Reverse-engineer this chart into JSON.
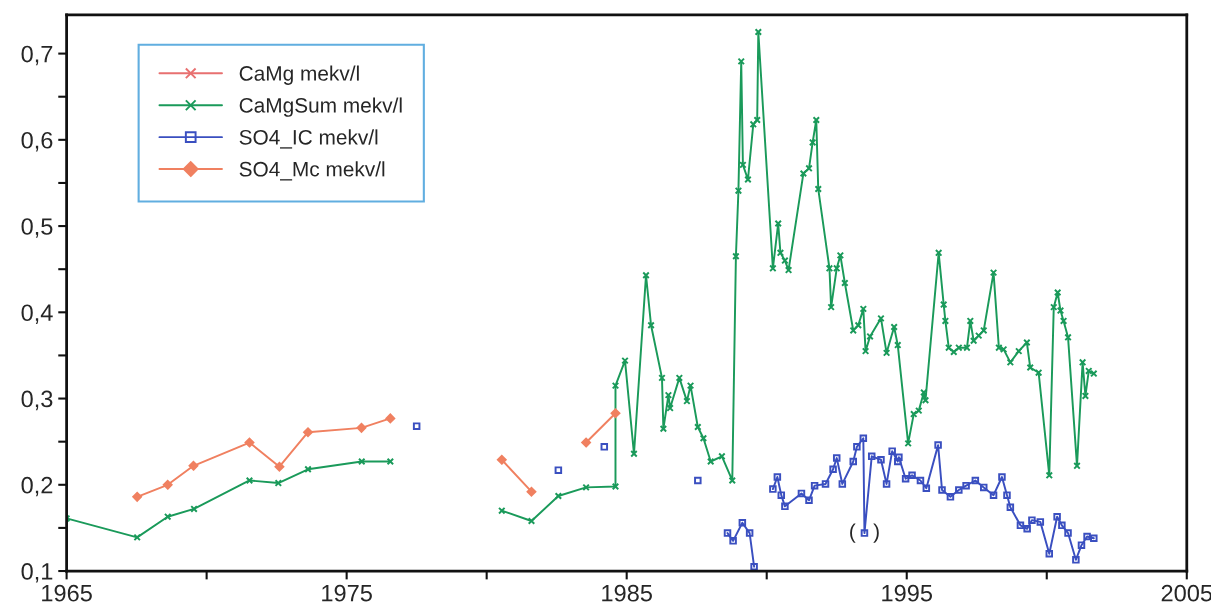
{
  "chart_data": {
    "type": "line",
    "xlim": [
      1965,
      2005
    ],
    "ylim": [
      0.1,
      0.745
    ],
    "xticks": [
      1965,
      {
        "value": 1970,
        "label": null
      },
      1975,
      {
        "value": 1980,
        "label": null
      },
      1985,
      {
        "value": 1990,
        "label": null
      },
      1995,
      {
        "value": 2000,
        "label": null
      },
      2005
    ],
    "yticks": [
      {
        "value": 0.1,
        "label": "0,1"
      },
      {
        "value": 0.15,
        "label": null
      },
      {
        "value": 0.2,
        "label": "0,2"
      },
      {
        "value": 0.25,
        "label": null
      },
      {
        "value": 0.3,
        "label": "0,3"
      },
      {
        "value": 0.35,
        "label": null
      },
      {
        "value": 0.4,
        "label": "0,4"
      },
      {
        "value": 0.45,
        "label": null
      },
      {
        "value": 0.5,
        "label": "0,5"
      },
      {
        "value": 0.55,
        "label": null
      },
      {
        "value": 0.6,
        "label": "0,6"
      },
      {
        "value": 0.65,
        "label": null
      },
      {
        "value": 0.7,
        "label": "0,7"
      }
    ],
    "grid": false,
    "legend": "top left",
    "line_style": "solid",
    "annotations": [
      {
        "text": "(   )",
        "x": 1993.49,
        "y": 0.144
      }
    ],
    "series": [
      {
        "name": "CaMg mekv/l",
        "color": "#e87070",
        "marker": "cross"
      },
      {
        "name": "CaMgSum mekv/l",
        "color": "#1a9a5a",
        "marker": "cross",
        "x": [
          1965,
          1967.52,
          1968.61,
          1969.55,
          1971.53,
          1972.56,
          1973.62,
          1975.54,
          1976.56,
          1978.5,
          1980.54,
          1981.6,
          1982.56,
          1983.55,
          1984.6,
          1984.6,
          1984.94,
          1985.26,
          1985.69,
          1985.87,
          1986.26,
          1986.31,
          1986.49,
          1986.55,
          1986.88,
          1987.15,
          1987.28,
          1987.54,
          1987.74,
          1988.0,
          1988.4,
          1988.77,
          1988.9,
          1988.99,
          1989.09,
          1989.15,
          1989.33,
          1989.52,
          1989.66,
          1989.7,
          1990.22,
          1990.41,
          1990.49,
          1990.65,
          1990.78,
          1991.31,
          1991.51,
          1991.64,
          1991.77,
          1991.84,
          1992.24,
          1992.3,
          1992.5,
          1992.63,
          1992.79,
          1993.09,
          1993.27,
          1993.45,
          1993.53,
          1993.69,
          1994.08,
          1994.28,
          1994.55,
          1994.68,
          1995.05,
          1995.25,
          1995.43,
          1995.61,
          1995.67,
          1996.14,
          1996.32,
          1996.38,
          1996.5,
          1996.68,
          1996.86,
          1997.15,
          1997.27,
          1997.39,
          1997.57,
          1997.75,
          1998.1,
          1998.29,
          1998.46,
          1998.7,
          1999.0,
          1999.29,
          1999.41,
          1999.71,
          2000.09,
          2000.25,
          2000.39,
          2000.49,
          2000.6,
          2000.76,
          2001.08,
          2001.28,
          2001.38,
          2001.5,
          2001.68
        ],
        "values": [
          0.161,
          0.139,
          0.163,
          0.172,
          0.205,
          0.202,
          0.218,
          0.227,
          0.227,
          null,
          0.17,
          0.158,
          0.187,
          0.197,
          0.198,
          0.315,
          0.344,
          0.236,
          0.443,
          0.385,
          0.324,
          0.265,
          0.304,
          0.289,
          0.324,
          0.297,
          0.315,
          0.267,
          0.254,
          0.227,
          0.233,
          0.205,
          0.465,
          0.541,
          0.691,
          0.571,
          0.554,
          0.618,
          0.623,
          0.725,
          0.451,
          0.503,
          0.469,
          0.46,
          0.449,
          0.561,
          0.567,
          0.597,
          0.623,
          0.543,
          0.451,
          0.406,
          0.451,
          0.466,
          0.434,
          0.379,
          0.385,
          0.404,
          0.355,
          0.372,
          0.393,
          0.353,
          0.383,
          0.362,
          0.248,
          0.282,
          0.286,
          0.307,
          0.298,
          0.469,
          0.409,
          0.39,
          0.359,
          0.354,
          0.359,
          0.359,
          0.39,
          0.367,
          0.373,
          0.379,
          0.446,
          0.359,
          0.357,
          0.342,
          0.355,
          0.365,
          0.336,
          0.33,
          0.211,
          0.406,
          0.423,
          0.402,
          0.39,
          0.371,
          0.222,
          0.342,
          0.303,
          0.332,
          0.329
        ]
      },
      {
        "name": "SO4_IC mekv/l",
        "color": "#3a4fc0",
        "marker": "square",
        "x": [
          1977.5,
          1980,
          1982.56,
          1983.4,
          1984.2,
          1986,
          1987.54,
          1988.1,
          1988.6,
          1988.8,
          1989.13,
          1989.39,
          1989.55,
          1989.9,
          1990.22,
          1990.38,
          1990.52,
          1990.65,
          1991.24,
          1991.51,
          1991.71,
          1992.1,
          1992.37,
          1992.5,
          1992.7,
          1993.09,
          1993.22,
          1993.45,
          1993.49,
          1993.75,
          1994.08,
          1994.28,
          1994.48,
          1994.68,
          1994.72,
          1994.96,
          1995.19,
          1995.49,
          1995.7,
          1996.12,
          1996.26,
          1996.56,
          1996.86,
          1997.12,
          1997.45,
          1997.75,
          1998.1,
          1998.4,
          1998.58,
          1998.7,
          1999.06,
          1999.3,
          1999.47,
          1999.77,
          2000.09,
          2000.37,
          2000.54,
          2000.76,
          2001.04,
          2001.24,
          2001.44,
          2001.68
        ],
        "values": [
          0.268,
          null,
          0.217,
          null,
          0.244,
          null,
          0.205,
          null,
          0.144,
          0.135,
          0.156,
          0.144,
          0.105,
          null,
          0.195,
          0.209,
          0.188,
          0.175,
          0.19,
          0.182,
          0.199,
          0.201,
          0.218,
          0.231,
          0.201,
          0.227,
          0.244,
          0.254,
          0.144,
          0.233,
          0.229,
          0.201,
          0.239,
          0.227,
          0.232,
          0.207,
          0.211,
          0.205,
          0.196,
          0.246,
          0.194,
          0.186,
          0.194,
          0.199,
          0.205,
          0.197,
          0.188,
          0.209,
          0.188,
          0.174,
          0.153,
          0.149,
          0.159,
          0.157,
          0.12,
          0.163,
          0.153,
          0.144,
          0.113,
          0.13,
          0.14,
          0.138
        ]
      },
      {
        "name": "SO4_Mc mekv/l",
        "color": "#f08060",
        "marker": "diamond",
        "x": [
          1967.52,
          1968.61,
          1969.53,
          1971.53,
          1972.6,
          1973.62,
          1975.53,
          1976.56,
          1978.5,
          1980.54,
          1981.6,
          1982.5,
          1983.55,
          1984.6
        ],
        "values": [
          0.186,
          0.2,
          0.222,
          0.249,
          0.221,
          0.261,
          0.266,
          0.277,
          null,
          0.229,
          0.192,
          null,
          0.249,
          0.283
        ]
      }
    ]
  }
}
